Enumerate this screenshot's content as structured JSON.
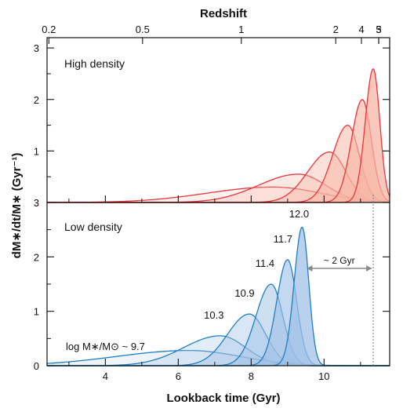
{
  "chart_data": {
    "type": "area",
    "title": "",
    "xlabel": "Lookback time (Gyr)",
    "x2label": "Redshift",
    "ylabel": "dM∗/dt/M∗ (Gyr⁻¹)",
    "xlim": [
      2.4,
      11.8
    ],
    "x_ticks": [
      "4",
      "6",
      "8",
      "10"
    ],
    "redshift_ticks": [
      {
        "z": "0.2",
        "t": 2.45
      },
      {
        "z": "0.5",
        "t": 5.02
      },
      {
        "z": "1",
        "t": 7.73
      },
      {
        "z": "2",
        "t": 10.32
      },
      {
        "z": "3",
        "t": 11.5
      },
      {
        "z": "4",
        "t": 12.1
      },
      {
        "z": "5",
        "t": 12.5
      }
    ],
    "panels": [
      {
        "label": "High density",
        "ylim": [
          0,
          3.2
        ],
        "y_ticks": [
          "1",
          "2",
          "3"
        ],
        "color": "#e8363c",
        "fill": "#f7b4a3",
        "series": [
          {
            "peak_time": 8.6,
            "peak": 0.3,
            "width_left": 1.8,
            "width_right": 1.3
          },
          {
            "peak_time": 9.3,
            "peak": 0.55,
            "width_left": 1.1,
            "width_right": 0.75
          },
          {
            "peak_time": 10.15,
            "peak": 0.98,
            "width_left": 0.6,
            "width_right": 0.45
          },
          {
            "peak_time": 10.65,
            "peak": 1.5,
            "width_left": 0.42,
            "width_right": 0.32
          },
          {
            "peak_time": 11.05,
            "peak": 2.0,
            "width_left": 0.3,
            "width_right": 0.25
          },
          {
            "peak_time": 11.35,
            "peak": 2.6,
            "width_left": 0.22,
            "width_right": 0.18
          }
        ]
      },
      {
        "label": "Low density",
        "ylim": [
          0,
          3.0
        ],
        "y_ticks": [
          "0",
          "1",
          "2",
          "3"
        ],
        "color": "#1f7fc0",
        "fill": "#9fc0e6",
        "series": [
          {
            "mass_label": "log M∗/M⊙ ~ 9.7",
            "peak_time": 6.3,
            "peak": 0.28,
            "width_left": 2.0,
            "width_right": 1.4
          },
          {
            "mass_label": "10.3",
            "peak_time": 7.15,
            "peak": 0.55,
            "width_left": 1.0,
            "width_right": 0.7
          },
          {
            "mass_label": "10.9",
            "peak_time": 7.95,
            "peak": 0.95,
            "width_left": 0.6,
            "width_right": 0.45
          },
          {
            "mass_label": "11.4",
            "peak_time": 8.55,
            "peak": 1.5,
            "width_left": 0.42,
            "width_right": 0.32
          },
          {
            "mass_label": "11.7",
            "peak_time": 9.0,
            "peak": 1.95,
            "width_left": 0.3,
            "width_right": 0.25
          },
          {
            "mass_label": "12.0",
            "peak_time": 9.4,
            "peak": 2.55,
            "width_left": 0.22,
            "width_right": 0.18
          }
        ]
      }
    ],
    "annotation": {
      "text": "~ 2 Gyr",
      "from": 9.4,
      "to": 11.35
    }
  }
}
